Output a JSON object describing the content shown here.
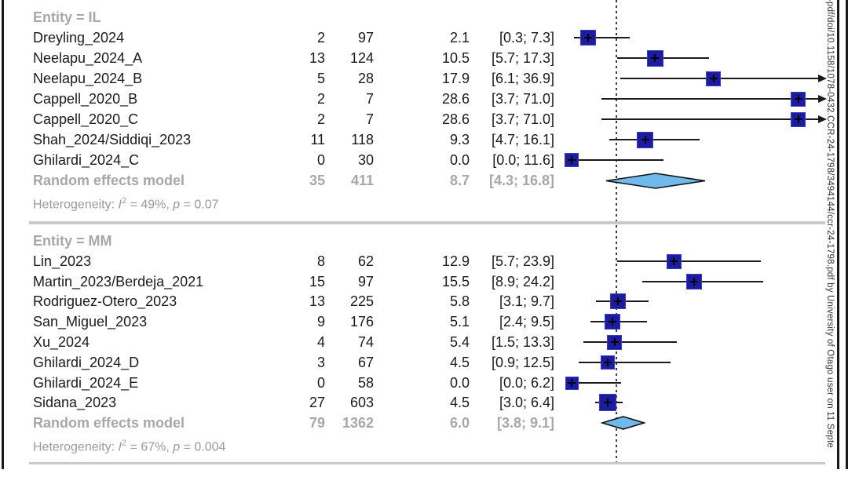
{
  "figure": {
    "watermark_text": "-pdf/doi/10.1158/1078-0432.CCR-24-1798/3494144/ccr-24-1798.pdf by University of Otago user on 11 Septe",
    "colors": {
      "square_fill": "#1c1c9e",
      "square_border": "#3c3cc8",
      "diamond_fill": "#70b9eb",
      "diamond_border": "#111111",
      "gray_text": "#a7a7a7",
      "heterogeneity_text": "#9a9a9a",
      "separator": "#c9c9c9",
      "line": "#1a1a1a"
    }
  },
  "chart_data": {
    "type": "forest",
    "x_axis": {
      "value_min": -2.8,
      "value_max": 32.5,
      "reference_line_value": 5.75
    },
    "groups": [
      {
        "header": "Entity = IL",
        "studies": [
          {
            "label": "Dreyling_2024",
            "events": "2",
            "total": "97",
            "estimate": "2.1",
            "ci": "[0.3; 7.3]",
            "est": 2.1,
            "lo": 0.3,
            "hi": 7.3,
            "size": 20,
            "arrow": false
          },
          {
            "label": "Neelapu_2024_A",
            "events": "13",
            "total": "124",
            "estimate": "10.5",
            "ci": "[5.7; 17.3]",
            "est": 10.5,
            "lo": 5.7,
            "hi": 17.3,
            "size": 21,
            "arrow": false
          },
          {
            "label": "Neelapu_2024_B",
            "events": "5",
            "total": "28",
            "estimate": "17.9",
            "ci": "[6.1; 36.9]",
            "est": 17.9,
            "lo": 6.1,
            "hi": 36.9,
            "size": 19,
            "arrow": true
          },
          {
            "label": "Cappell_2020_B",
            "events": "2",
            "total": "7",
            "estimate": "28.6",
            "ci": "[3.7; 71.0]",
            "est": 28.6,
            "lo": 3.7,
            "hi": 71.0,
            "size": 19,
            "arrow": true
          },
          {
            "label": "Cappell_2020_C",
            "events": "2",
            "total": "7",
            "estimate": "28.6",
            "ci": "[3.7; 71.0]",
            "est": 28.6,
            "lo": 3.7,
            "hi": 71.0,
            "size": 19,
            "arrow": true
          },
          {
            "label": "Shah_2024/Siddiqi_2023",
            "events": "11",
            "total": "118",
            "estimate": "9.3",
            "ci": "[4.7; 16.1]",
            "est": 9.3,
            "lo": 4.7,
            "hi": 16.1,
            "size": 21,
            "arrow": false
          },
          {
            "label": "Ghilardi_2024_C",
            "events": "0",
            "total": "30",
            "estimate": "0.0",
            "ci": "[0.0; 11.6]",
            "est": 0.0,
            "lo": 0.0,
            "hi": 11.6,
            "size": 18,
            "arrow": false
          }
        ],
        "pooled": {
          "label": "Random effects model",
          "events": "35",
          "total": "411",
          "estimate": "8.7",
          "ci": "[4.3; 16.8]",
          "est": 8.7,
          "lo": 4.3,
          "hi": 16.8,
          "height": 19
        },
        "heterogeneity": {
          "prefix": "Heterogeneity:",
          "stat_var": "I",
          "stat_sup": "2",
          "eq": "=",
          "i2_value": "49%",
          "comma": ",",
          "p_var": "p",
          "p_value": "0.07"
        }
      },
      {
        "header": "Entity = MM",
        "studies": [
          {
            "label": "Lin_2023",
            "events": "8",
            "total": "62",
            "estimate": "12.9",
            "ci": "[5.7; 23.9]",
            "est": 12.9,
            "lo": 5.7,
            "hi": 23.9,
            "size": 19,
            "arrow": false
          },
          {
            "label": "Martin_2023/Berdeja_2021",
            "events": "15",
            "total": "97",
            "estimate": "15.5",
            "ci": "[8.9; 24.2]",
            "est": 15.5,
            "lo": 8.9,
            "hi": 24.2,
            "size": 20,
            "arrow": false
          },
          {
            "label": "Rodriguez-Otero_2023",
            "events": "13",
            "total": "225",
            "estimate": "5.8",
            "ci": "[3.1; 9.7]",
            "est": 5.8,
            "lo": 3.1,
            "hi": 9.7,
            "size": 20,
            "arrow": false
          },
          {
            "label": "San_Miguel_2023",
            "events": "9",
            "total": "176",
            "estimate": "5.1",
            "ci": "[2.4; 9.5]",
            "est": 5.1,
            "lo": 2.4,
            "hi": 9.5,
            "size": 20,
            "arrow": false
          },
          {
            "label": "Xu_2024",
            "events": "4",
            "total": "74",
            "estimate": "5.4",
            "ci": "[1.5; 13.3]",
            "est": 5.4,
            "lo": 1.5,
            "hi": 13.3,
            "size": 19,
            "arrow": false
          },
          {
            "label": "Ghilardi_2024_D",
            "events": "3",
            "total": "67",
            "estimate": "4.5",
            "ci": "[0.9; 12.5]",
            "est": 4.5,
            "lo": 0.9,
            "hi": 12.5,
            "size": 18,
            "arrow": false
          },
          {
            "label": "Ghilardi_2024_E",
            "events": "0",
            "total": "58",
            "estimate": "0.0",
            "ci": "[0.0; 6.2]",
            "est": 0.0,
            "lo": 0.0,
            "hi": 6.2,
            "size": 17,
            "arrow": false
          },
          {
            "label": "Sidana_2023",
            "events": "27",
            "total": "603",
            "estimate": "4.5",
            "ci": "[3.0; 6.4]",
            "est": 4.5,
            "lo": 3.0,
            "hi": 6.4,
            "size": 22,
            "arrow": false
          }
        ],
        "pooled": {
          "label": "Random effects model",
          "events": "79",
          "total": "1362",
          "estimate": "6.0",
          "ci": "[3.8; 9.1]",
          "est": 6.0,
          "lo": 3.8,
          "hi": 9.1,
          "height": 16
        },
        "heterogeneity": {
          "prefix": "Heterogeneity:",
          "stat_var": "I",
          "stat_sup": "2",
          "eq": "=",
          "i2_value": "67%",
          "comma": ",",
          "p_var": "p",
          "p_value": "0.004"
        }
      }
    ]
  }
}
